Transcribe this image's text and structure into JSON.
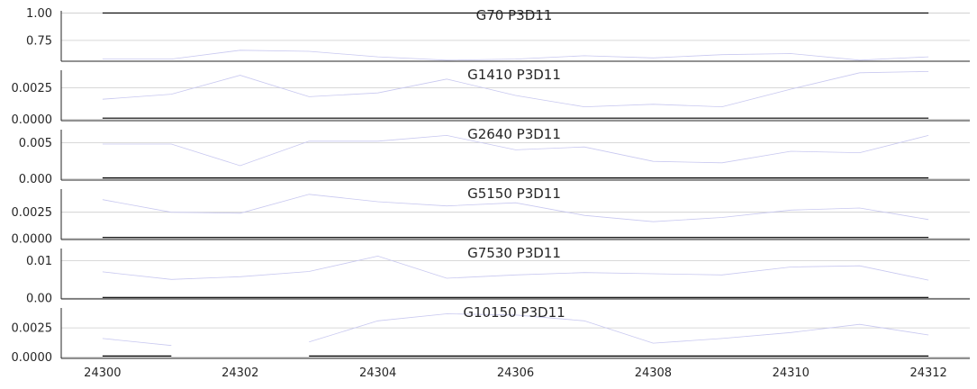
{
  "chart_data": {
    "type": "line",
    "x_ticks": [
      24300,
      24302,
      24304,
      24306,
      24308,
      24310,
      24312
    ],
    "xlim": [
      24299.4,
      24312.6
    ],
    "colors": {
      "series": "#c8c8f0",
      "flag": "#000000",
      "grid": "#cccccc",
      "axis": "#262626"
    },
    "grid": true,
    "panels": [
      {
        "title": "G70 P3D11",
        "ylim": [
          0.56,
          1.02
        ],
        "y_ticks": [
          1.0,
          0.75
        ],
        "y_tick_labels": [
          "1.00",
          "0.75"
        ],
        "series": [
          {
            "x": [
              24300,
              24301,
              24302,
              24303,
              24304,
              24305,
              24306,
              24307,
              24308,
              24309,
              24310,
              24311,
              24312
            ],
            "y": [
              0.58,
              0.58,
              0.66,
              0.65,
              0.6,
              0.57,
              0.58,
              0.61,
              0.59,
              0.62,
              0.63,
              0.57,
              0.6
            ]
          }
        ],
        "flag": [
          {
            "x": [
              24300,
              24312
            ],
            "y": 1.0
          }
        ]
      },
      {
        "title": "G1410 P3D11",
        "ylim": [
          -0.0001,
          0.0039
        ],
        "y_ticks": [
          0.0025,
          0.0
        ],
        "y_tick_labels": [
          "0.0025",
          "0.0000"
        ],
        "series": [
          {
            "x": [
              24300,
              24301,
              24302,
              24303,
              24304,
              24305,
              24306,
              24307,
              24308,
              24309,
              24310,
              24311,
              24312
            ],
            "y": [
              0.0016,
              0.002,
              0.0035,
              0.0018,
              0.0021,
              0.0032,
              0.0019,
              0.001,
              0.0012,
              0.001,
              0.0024,
              0.0037,
              0.0038
            ]
          }
        ],
        "flag": [
          {
            "x": [
              24300,
              24312
            ],
            "y": 0.0001
          }
        ]
      },
      {
        "title": "G2640 P3D11",
        "ylim": [
          -0.0002,
          0.0068
        ],
        "y_ticks": [
          0.005,
          0.0
        ],
        "y_tick_labels": [
          "0.005",
          "0.000"
        ],
        "series": [
          {
            "x": [
              24300,
              24301,
              24302,
              24303,
              24304,
              24305,
              24306,
              24307,
              24308,
              24309,
              24310,
              24311,
              24312
            ],
            "y": [
              0.0048,
              0.0048,
              0.0018,
              0.0052,
              0.0052,
              0.006,
              0.004,
              0.0044,
              0.0024,
              0.0022,
              0.0038,
              0.0036,
              0.006
            ]
          }
        ],
        "flag": [
          {
            "x": [
              24300,
              24312
            ],
            "y": 0.0001
          }
        ]
      },
      {
        "title": "G5150 P3D11",
        "ylim": [
          -0.0001,
          0.0047
        ],
        "y_ticks": [
          0.0025,
          0.0
        ],
        "y_tick_labels": [
          "0.0025",
          "0.0000"
        ],
        "series": [
          {
            "x": [
              24300,
              24301,
              24302,
              24303,
              24304,
              24305,
              24306,
              24307,
              24308,
              24309,
              24310,
              24311,
              24312
            ],
            "y": [
              0.0037,
              0.0025,
              0.0024,
              0.0042,
              0.0035,
              0.0031,
              0.0034,
              0.0022,
              0.0016,
              0.002,
              0.0027,
              0.0029,
              0.0018
            ]
          }
        ],
        "flag": [
          {
            "x": [
              24300,
              24312
            ],
            "y": 0.0001
          }
        ]
      },
      {
        "title": "G7530 P3D11",
        "ylim": [
          -0.0002,
          0.0132
        ],
        "y_ticks": [
          0.01,
          0.0
        ],
        "y_tick_labels": [
          "0.01",
          "0.00"
        ],
        "series": [
          {
            "x": [
              24300,
              24301,
              24302,
              24303,
              24304,
              24305,
              24306,
              24307,
              24308,
              24309,
              24310,
              24311,
              24312
            ],
            "y": [
              0.007,
              0.005,
              0.0057,
              0.0071,
              0.0112,
              0.0053,
              0.0062,
              0.0068,
              0.0065,
              0.0062,
              0.0083,
              0.0086,
              0.0048
            ]
          }
        ],
        "flag": [
          {
            "x": [
              24300,
              24312
            ],
            "y": 0.0002
          }
        ]
      },
      {
        "title": "G10150 P3D11",
        "ylim": [
          -0.0001,
          0.0042
        ],
        "y_ticks": [
          0.0025,
          0.0
        ],
        "y_tick_labels": [
          "0.0025",
          "0.0000"
        ],
        "series": [
          {
            "x": [
              24300,
              24301
            ],
            "y": [
              0.0016,
              0.001
            ]
          },
          {
            "x": [
              24303,
              24304,
              24305,
              24306,
              24307,
              24308,
              24309,
              24310,
              24311,
              24312
            ],
            "y": [
              0.0013,
              0.0031,
              0.0037,
              0.0036,
              0.0031,
              0.0012,
              0.0016,
              0.0021,
              0.0028,
              0.0019
            ]
          }
        ],
        "flag": [
          {
            "x": [
              24300,
              24301
            ],
            "y": 0.0001
          },
          {
            "x": [
              24303,
              24312
            ],
            "y": 0.0001
          }
        ]
      }
    ]
  }
}
